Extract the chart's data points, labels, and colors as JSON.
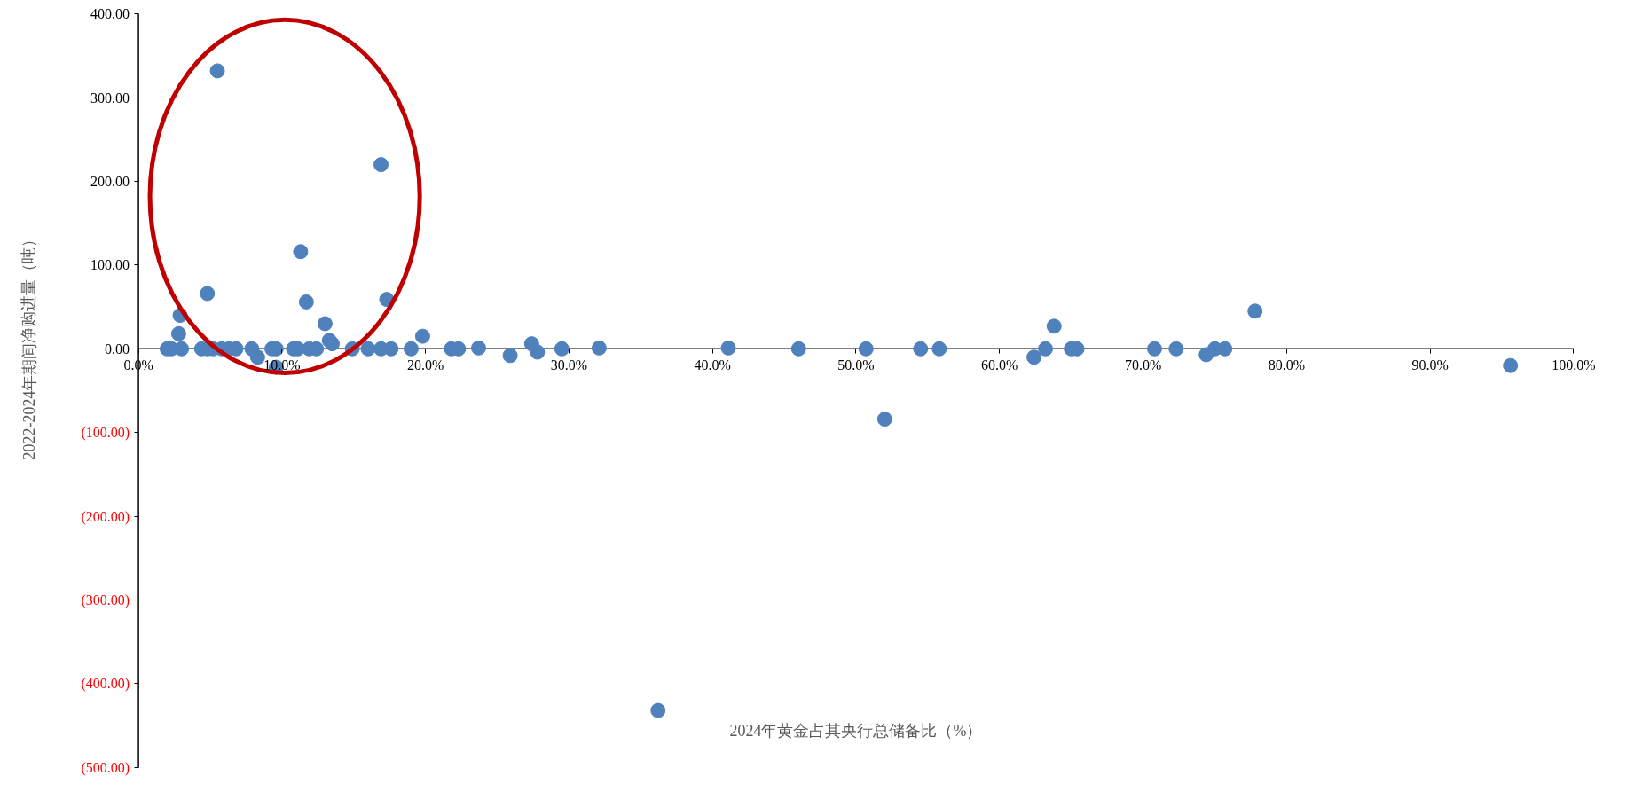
{
  "chart_data": {
    "type": "scatter",
    "xlabel": "2024年黄金占其央行总储备比（%）",
    "ylabel": "2022-2024年期间净购进量（吨）",
    "x": [
      2.0,
      2.3,
      2.8,
      2.9,
      3.0,
      4.4,
      4.8,
      4.8,
      5.2,
      5.5,
      5.8,
      6.3,
      6.8,
      7.9,
      8.3,
      9.3,
      9.6,
      9.6,
      10.8,
      11.1,
      11.3,
      11.7,
      11.9,
      12.4,
      13.0,
      13.3,
      13.5,
      14.9,
      16.0,
      16.9,
      16.9,
      17.3,
      17.6,
      19.0,
      19.8,
      21.8,
      22.3,
      23.7,
      25.9,
      27.4,
      27.8,
      29.5,
      32.1,
      36.2,
      41.1,
      46.0,
      50.7,
      52.0,
      54.5,
      55.8,
      62.4,
      63.2,
      63.8,
      65.0,
      65.4,
      70.8,
      72.3,
      74.4,
      75.0,
      75.7,
      77.8,
      95.6
    ],
    "values": [
      0,
      0,
      18,
      40,
      0,
      0,
      66,
      0,
      0,
      332,
      0,
      0,
      0,
      0,
      -10,
      0,
      0,
      -22,
      0,
      0,
      116,
      56,
      0,
      0,
      30,
      10,
      6,
      0,
      0,
      220,
      0,
      59,
      0,
      0,
      15,
      0,
      0,
      1,
      -8,
      6,
      -4,
      0,
      1,
      -432,
      1,
      0,
      0,
      -84,
      0,
      0,
      -10,
      0,
      27,
      0,
      0,
      0,
      0,
      -7,
      0,
      0,
      45,
      -20
    ],
    "color": "#4f81bd",
    "marker": "circle",
    "grid": false,
    "xlim": [
      0,
      100
    ],
    "xticks": [
      {
        "value": 0,
        "label": "0.0%"
      },
      {
        "value": 10,
        "label": "10.0%"
      },
      {
        "value": 20,
        "label": "20.0%"
      },
      {
        "value": 30,
        "label": "30.0%"
      },
      {
        "value": 40,
        "label": "40.0%"
      },
      {
        "value": 50,
        "label": "50.0%"
      },
      {
        "value": 60,
        "label": "60.0%"
      },
      {
        "value": 70,
        "label": "70.0%"
      },
      {
        "value": 80,
        "label": "80.0%"
      },
      {
        "value": 90,
        "label": "90.0%"
      },
      {
        "value": 100,
        "label": "100.0%"
      }
    ],
    "ylim": [
      -500,
      400
    ],
    "yticks": [
      {
        "value": 400,
        "label": "400.00"
      },
      {
        "value": 300,
        "label": "300.00"
      },
      {
        "value": 200,
        "label": "200.00"
      },
      {
        "value": 100,
        "label": "100.00"
      },
      {
        "value": 0,
        "label": "0.00"
      },
      {
        "value": -100,
        "label": "(100.00)"
      },
      {
        "value": -200,
        "label": "(200.00)"
      },
      {
        "value": -300,
        "label": "(300.00)"
      },
      {
        "value": -400,
        "label": "(400.00)"
      },
      {
        "value": -500,
        "label": "(500.00)"
      }
    ]
  }
}
